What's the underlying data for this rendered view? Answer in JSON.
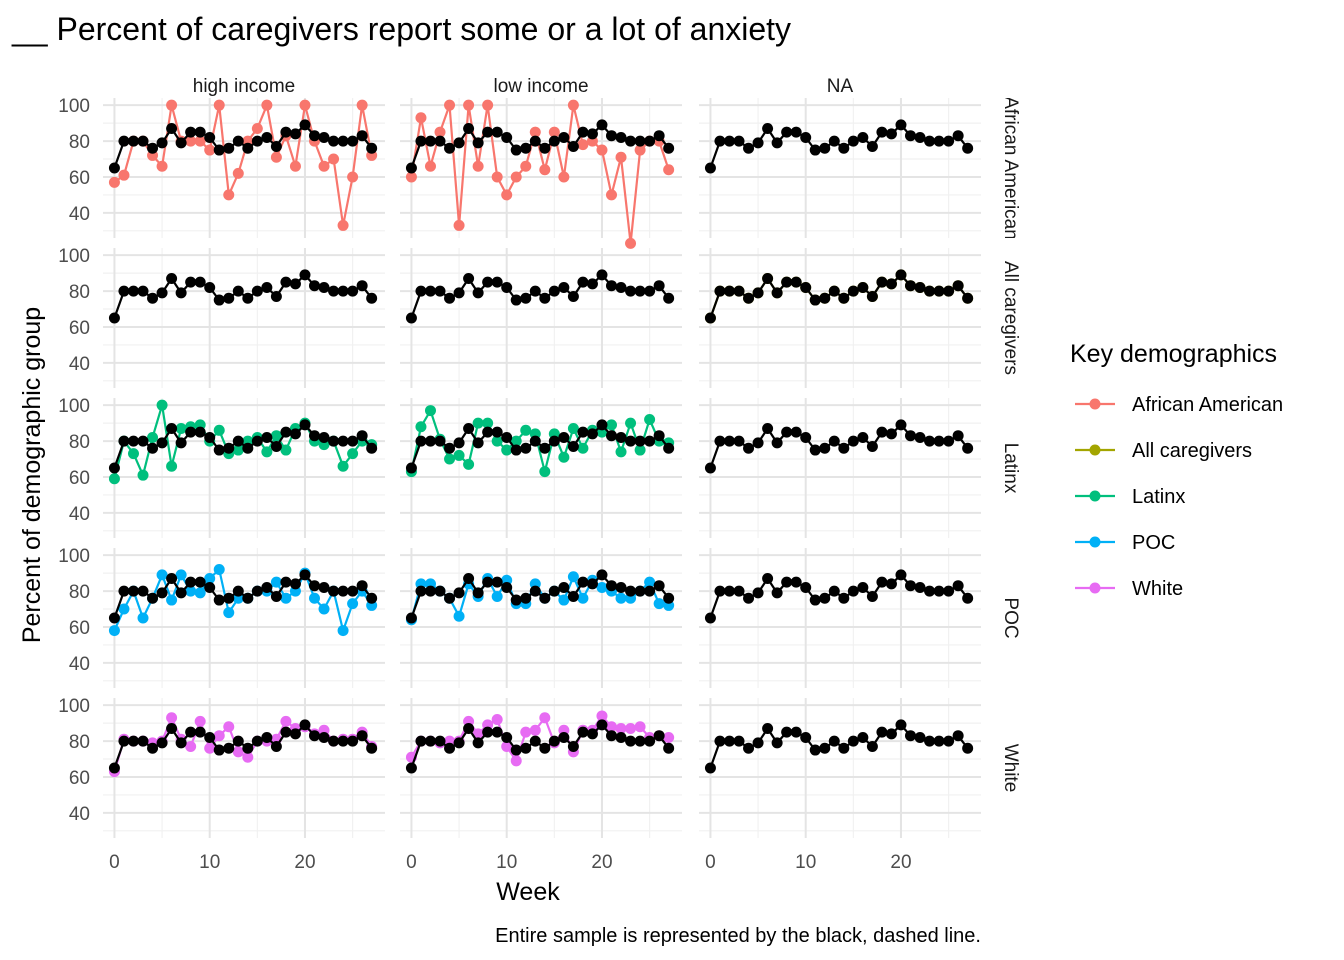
{
  "chart_data": {
    "type": "line",
    "title": "__ Percent of caregivers report some or a lot of anxiety",
    "xlabel": "Week",
    "ylabel": "Percent of demographic group",
    "caption": "Entire sample is represented by the black, dashed line.",
    "xlim": [
      -1.2,
      28.4
    ],
    "ylim": [
      26,
      104
    ],
    "x_ticks": [
      0,
      10,
      20
    ],
    "x_tick_labels": [
      "0",
      "10",
      "20"
    ],
    "y_ticks": [
      40,
      60,
      80,
      100
    ],
    "y_tick_labels": [
      "40",
      "60",
      "80",
      "100"
    ],
    "column_facets": [
      "high income",
      "low income",
      "NA"
    ],
    "row_facets": [
      "African American",
      "All caregivers",
      "Latinx",
      "POC",
      "White"
    ],
    "legend": {
      "title": "Key demographics",
      "placement": "right",
      "entries": [
        {
          "name": "African American",
          "color": "#F8766D"
        },
        {
          "name": "All caregivers",
          "color": "#A3A500"
        },
        {
          "name": "Latinx",
          "color": "#00BF7D"
        },
        {
          "name": "POC",
          "color": "#00B0F6"
        },
        {
          "name": "White",
          "color": "#E76BF3"
        }
      ]
    },
    "overall_series": {
      "color": "#000000",
      "x": [
        0,
        1,
        2,
        3,
        4,
        5,
        6,
        7,
        8,
        9,
        10,
        11,
        12,
        13,
        14,
        15,
        16,
        17,
        18,
        19,
        20,
        21,
        22,
        23,
        24,
        25,
        26,
        27
      ],
      "values": [
        65,
        80,
        80,
        80,
        76,
        79,
        87,
        79,
        85,
        85,
        82,
        75,
        76,
        80,
        76,
        80,
        82,
        77,
        85,
        84,
        89,
        83,
        82,
        80,
        80,
        80,
        83,
        76
      ]
    },
    "panels": [
      {
        "row": "African American",
        "col": "high income",
        "series": "African American",
        "values": [
          57,
          61,
          80,
          80,
          72,
          66,
          100,
          80,
          80,
          80,
          75,
          100,
          50,
          62,
          80,
          87,
          100,
          71,
          83,
          66,
          100,
          80,
          66,
          70,
          33,
          60,
          100,
          72
        ]
      },
      {
        "row": "African American",
        "col": "low income",
        "series": "African American",
        "values": [
          60,
          93,
          66,
          85,
          100,
          33,
          100,
          66,
          100,
          60,
          50,
          60,
          66,
          85,
          64,
          85,
          60,
          100,
          78,
          80,
          75,
          50,
          71,
          23,
          75,
          80,
          80,
          64
        ]
      },
      {
        "row": "All caregivers",
        "col": "NA",
        "series": "All caregivers",
        "values": [
          65,
          80,
          80,
          80,
          76,
          79,
          87,
          79,
          85,
          85,
          82,
          75,
          76,
          80,
          76,
          80,
          82,
          77,
          85,
          84,
          89,
          83,
          82,
          80,
          80,
          80,
          83,
          76
        ]
      },
      {
        "row": "Latinx",
        "col": "high income",
        "series": "Latinx",
        "values": [
          59,
          80,
          73,
          61,
          82,
          100,
          66,
          87,
          88,
          89,
          80,
          86,
          73,
          75,
          80,
          82,
          74,
          83,
          75,
          87,
          90,
          80,
          78,
          80,
          66,
          73,
          80,
          78
        ]
      },
      {
        "row": "Latinx",
        "col": "low income",
        "series": "Latinx",
        "values": [
          63,
          88,
          97,
          81,
          70,
          72,
          67,
          90,
          90,
          80,
          75,
          80,
          86,
          84,
          63,
          84,
          71,
          87,
          76,
          86,
          85,
          89,
          74,
          90,
          75,
          92,
          80,
          79
        ]
      },
      {
        "row": "POC",
        "col": "high income",
        "series": "POC",
        "values": [
          58,
          70,
          80,
          65,
          76,
          89,
          75,
          89,
          80,
          79,
          87,
          92,
          68,
          76,
          76,
          80,
          80,
          85,
          76,
          80,
          90,
          76,
          70,
          80,
          58,
          73,
          80,
          72
        ]
      },
      {
        "row": "POC",
        "col": "low income",
        "series": "POC",
        "values": [
          64,
          84,
          84,
          80,
          76,
          66,
          84,
          77,
          87,
          77,
          86,
          73,
          73,
          84,
          76,
          80,
          75,
          88,
          76,
          86,
          82,
          80,
          76,
          76,
          80,
          85,
          73,
          72
        ]
      },
      {
        "row": "White",
        "col": "high income",
        "series": "White",
        "values": [
          63,
          81,
          80,
          80,
          79,
          80,
          93,
          81,
          77,
          91,
          76,
          83,
          88,
          74,
          71,
          80,
          80,
          81,
          91,
          87,
          88,
          84,
          86,
          80,
          81,
          81,
          85,
          77
        ]
      },
      {
        "row": "White",
        "col": "low income",
        "series": "White",
        "values": [
          71,
          80,
          80,
          79,
          80,
          80,
          91,
          84,
          89,
          92,
          77,
          69,
          85,
          86,
          93,
          79,
          86,
          74,
          86,
          86,
          94,
          88,
          87,
          87,
          88,
          82,
          83,
          82
        ]
      }
    ]
  }
}
